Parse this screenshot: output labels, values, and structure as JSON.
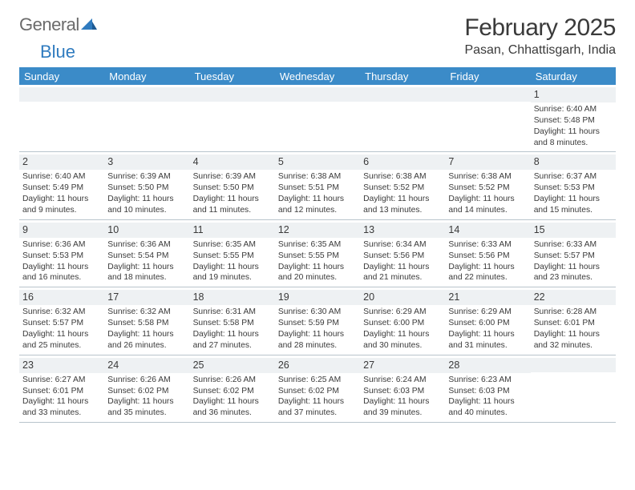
{
  "logo": {
    "text1": "General",
    "text2": "Blue"
  },
  "title": "February 2025",
  "location": "Pasan, Chhattisgarh, India",
  "colors": {
    "header_bg": "#3b8bc8",
    "header_text": "#ffffff",
    "daynum_bg": "#eef1f3",
    "border": "#b8c4cc",
    "body_text": "#3a3a3a",
    "logo_gray": "#6b6b6b",
    "logo_blue": "#2f7bbf"
  },
  "day_headers": [
    "Sunday",
    "Monday",
    "Tuesday",
    "Wednesday",
    "Thursday",
    "Friday",
    "Saturday"
  ],
  "weeks": [
    [
      {
        "n": "",
        "sr": "",
        "ss": "",
        "dl": ""
      },
      {
        "n": "",
        "sr": "",
        "ss": "",
        "dl": ""
      },
      {
        "n": "",
        "sr": "",
        "ss": "",
        "dl": ""
      },
      {
        "n": "",
        "sr": "",
        "ss": "",
        "dl": ""
      },
      {
        "n": "",
        "sr": "",
        "ss": "",
        "dl": ""
      },
      {
        "n": "",
        "sr": "",
        "ss": "",
        "dl": ""
      },
      {
        "n": "1",
        "sr": "Sunrise: 6:40 AM",
        "ss": "Sunset: 5:48 PM",
        "dl": "Daylight: 11 hours and 8 minutes."
      }
    ],
    [
      {
        "n": "2",
        "sr": "Sunrise: 6:40 AM",
        "ss": "Sunset: 5:49 PM",
        "dl": "Daylight: 11 hours and 9 minutes."
      },
      {
        "n": "3",
        "sr": "Sunrise: 6:39 AM",
        "ss": "Sunset: 5:50 PM",
        "dl": "Daylight: 11 hours and 10 minutes."
      },
      {
        "n": "4",
        "sr": "Sunrise: 6:39 AM",
        "ss": "Sunset: 5:50 PM",
        "dl": "Daylight: 11 hours and 11 minutes."
      },
      {
        "n": "5",
        "sr": "Sunrise: 6:38 AM",
        "ss": "Sunset: 5:51 PM",
        "dl": "Daylight: 11 hours and 12 minutes."
      },
      {
        "n": "6",
        "sr": "Sunrise: 6:38 AM",
        "ss": "Sunset: 5:52 PM",
        "dl": "Daylight: 11 hours and 13 minutes."
      },
      {
        "n": "7",
        "sr": "Sunrise: 6:38 AM",
        "ss": "Sunset: 5:52 PM",
        "dl": "Daylight: 11 hours and 14 minutes."
      },
      {
        "n": "8",
        "sr": "Sunrise: 6:37 AM",
        "ss": "Sunset: 5:53 PM",
        "dl": "Daylight: 11 hours and 15 minutes."
      }
    ],
    [
      {
        "n": "9",
        "sr": "Sunrise: 6:36 AM",
        "ss": "Sunset: 5:53 PM",
        "dl": "Daylight: 11 hours and 16 minutes."
      },
      {
        "n": "10",
        "sr": "Sunrise: 6:36 AM",
        "ss": "Sunset: 5:54 PM",
        "dl": "Daylight: 11 hours and 18 minutes."
      },
      {
        "n": "11",
        "sr": "Sunrise: 6:35 AM",
        "ss": "Sunset: 5:55 PM",
        "dl": "Daylight: 11 hours and 19 minutes."
      },
      {
        "n": "12",
        "sr": "Sunrise: 6:35 AM",
        "ss": "Sunset: 5:55 PM",
        "dl": "Daylight: 11 hours and 20 minutes."
      },
      {
        "n": "13",
        "sr": "Sunrise: 6:34 AM",
        "ss": "Sunset: 5:56 PM",
        "dl": "Daylight: 11 hours and 21 minutes."
      },
      {
        "n": "14",
        "sr": "Sunrise: 6:33 AM",
        "ss": "Sunset: 5:56 PM",
        "dl": "Daylight: 11 hours and 22 minutes."
      },
      {
        "n": "15",
        "sr": "Sunrise: 6:33 AM",
        "ss": "Sunset: 5:57 PM",
        "dl": "Daylight: 11 hours and 23 minutes."
      }
    ],
    [
      {
        "n": "16",
        "sr": "Sunrise: 6:32 AM",
        "ss": "Sunset: 5:57 PM",
        "dl": "Daylight: 11 hours and 25 minutes."
      },
      {
        "n": "17",
        "sr": "Sunrise: 6:32 AM",
        "ss": "Sunset: 5:58 PM",
        "dl": "Daylight: 11 hours and 26 minutes."
      },
      {
        "n": "18",
        "sr": "Sunrise: 6:31 AM",
        "ss": "Sunset: 5:58 PM",
        "dl": "Daylight: 11 hours and 27 minutes."
      },
      {
        "n": "19",
        "sr": "Sunrise: 6:30 AM",
        "ss": "Sunset: 5:59 PM",
        "dl": "Daylight: 11 hours and 28 minutes."
      },
      {
        "n": "20",
        "sr": "Sunrise: 6:29 AM",
        "ss": "Sunset: 6:00 PM",
        "dl": "Daylight: 11 hours and 30 minutes."
      },
      {
        "n": "21",
        "sr": "Sunrise: 6:29 AM",
        "ss": "Sunset: 6:00 PM",
        "dl": "Daylight: 11 hours and 31 minutes."
      },
      {
        "n": "22",
        "sr": "Sunrise: 6:28 AM",
        "ss": "Sunset: 6:01 PM",
        "dl": "Daylight: 11 hours and 32 minutes."
      }
    ],
    [
      {
        "n": "23",
        "sr": "Sunrise: 6:27 AM",
        "ss": "Sunset: 6:01 PM",
        "dl": "Daylight: 11 hours and 33 minutes."
      },
      {
        "n": "24",
        "sr": "Sunrise: 6:26 AM",
        "ss": "Sunset: 6:02 PM",
        "dl": "Daylight: 11 hours and 35 minutes."
      },
      {
        "n": "25",
        "sr": "Sunrise: 6:26 AM",
        "ss": "Sunset: 6:02 PM",
        "dl": "Daylight: 11 hours and 36 minutes."
      },
      {
        "n": "26",
        "sr": "Sunrise: 6:25 AM",
        "ss": "Sunset: 6:02 PM",
        "dl": "Daylight: 11 hours and 37 minutes."
      },
      {
        "n": "27",
        "sr": "Sunrise: 6:24 AM",
        "ss": "Sunset: 6:03 PM",
        "dl": "Daylight: 11 hours and 39 minutes."
      },
      {
        "n": "28",
        "sr": "Sunrise: 6:23 AM",
        "ss": "Sunset: 6:03 PM",
        "dl": "Daylight: 11 hours and 40 minutes."
      },
      {
        "n": "",
        "sr": "",
        "ss": "",
        "dl": ""
      }
    ]
  ]
}
